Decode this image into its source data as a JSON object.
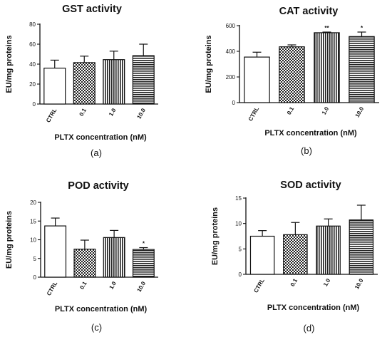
{
  "figure": {
    "panels": [
      "(a)",
      "(b)",
      "(c)",
      "(d)"
    ]
  },
  "chart_data": [
    {
      "type": "bar",
      "title": "GST activity",
      "xlabel": "PLTX concentration (nM)",
      "ylabel": "EU/mg proteins",
      "categories": [
        "CTRL",
        "0.1",
        "1.0",
        "10.0"
      ],
      "values": [
        36,
        41.5,
        44.5,
        48.5
      ],
      "errors": [
        8,
        6.5,
        8.5,
        11.5
      ],
      "significance": [
        "",
        "",
        "",
        ""
      ],
      "ylim": [
        0,
        80
      ],
      "yticks": [
        0,
        20,
        40,
        60,
        80
      ],
      "patterns": [
        "white",
        "checker",
        "vertical",
        "horizontal"
      ]
    },
    {
      "type": "bar",
      "title": "CAT activity",
      "xlabel": "PLTX concentration (nM)",
      "ylabel": "EU/mg proteins",
      "categories": [
        "CTRL",
        "0.1",
        "1.0",
        "10.0"
      ],
      "values": [
        355,
        435,
        545,
        515
      ],
      "errors": [
        38,
        15,
        5,
        35
      ],
      "significance": [
        "",
        "",
        "**",
        "*"
      ],
      "ylim": [
        0,
        600
      ],
      "yticks": [
        0,
        200,
        400,
        600
      ],
      "patterns": [
        "white",
        "checker",
        "vertical",
        "horizontal"
      ]
    },
    {
      "type": "bar",
      "title": "POD activity",
      "xlabel": "PLTX concentration (nM)",
      "ylabel": "EU/mg proteins",
      "categories": [
        "CTRL",
        "0.1",
        "1.0",
        "10.0"
      ],
      "values": [
        13.7,
        7.5,
        10.6,
        7.4
      ],
      "errors": [
        2.1,
        2.4,
        1.9,
        0.5
      ],
      "significance": [
        "",
        "",
        "",
        "*"
      ],
      "ylim": [
        0,
        20
      ],
      "yticks": [
        0,
        5,
        10,
        15,
        20
      ],
      "patterns": [
        "white",
        "checker",
        "vertical",
        "horizontal"
      ]
    },
    {
      "type": "bar",
      "title": "SOD activity",
      "xlabel": "PLTX concentration (nM)",
      "ylabel": "EU/mg proteins",
      "categories": [
        "CTRL",
        "0.1",
        "1.0",
        "10.0"
      ],
      "values": [
        7.5,
        7.8,
        9.5,
        10.7
      ],
      "errors": [
        1.1,
        2.4,
        1.4,
        2.9
      ],
      "significance": [
        "",
        "",
        "",
        ""
      ],
      "ylim": [
        0,
        15
      ],
      "yticks": [
        0,
        5,
        10,
        15
      ],
      "patterns": [
        "white",
        "checker",
        "vertical",
        "horizontal"
      ]
    }
  ]
}
